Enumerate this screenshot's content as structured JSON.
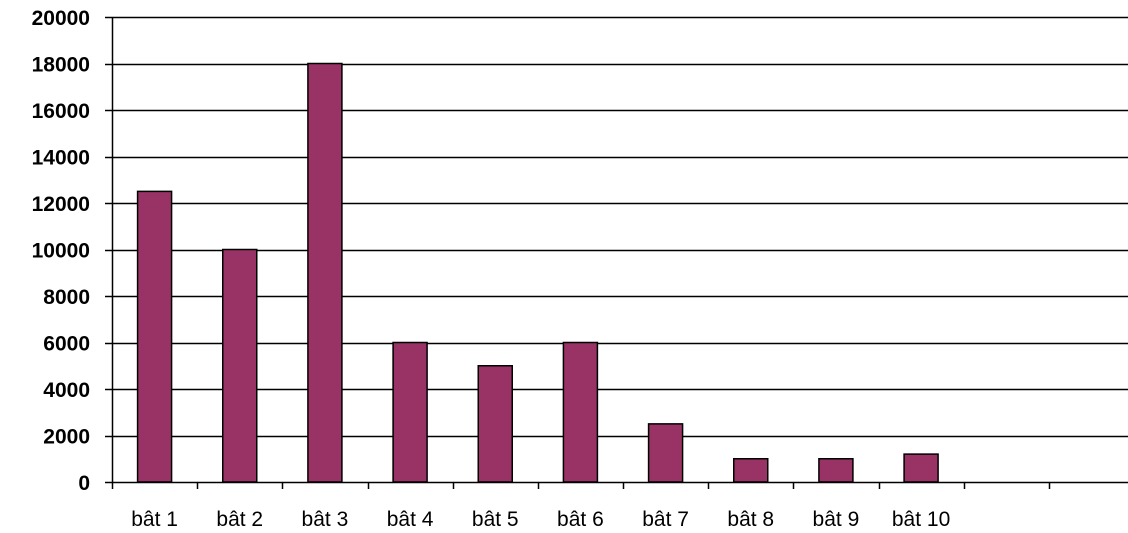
{
  "chart_data": {
    "type": "bar",
    "categories": [
      "bât 1",
      "bât 2",
      "bât 3",
      "bât 4",
      "bât 5",
      "bât 6",
      "bât 7",
      "bât 8",
      "bât 9",
      "bât 10",
      "",
      ""
    ],
    "series": [
      {
        "values": [
          12500,
          10000,
          18000,
          6000,
          5000,
          6000,
          2500,
          1000,
          1000,
          1200,
          null,
          null
        ]
      }
    ],
    "title": "",
    "xlabel": "",
    "ylabel": "",
    "ylim": [
      0,
      20000
    ],
    "yticks": [
      0,
      2000,
      4000,
      6000,
      8000,
      10000,
      12000,
      14000,
      16000,
      18000,
      20000
    ],
    "grid": true,
    "legend": "none",
    "bar_color": "#993366",
    "bar_edge_color": "#000000",
    "gridline_color": "#000000",
    "axis_color": "#000000"
  }
}
